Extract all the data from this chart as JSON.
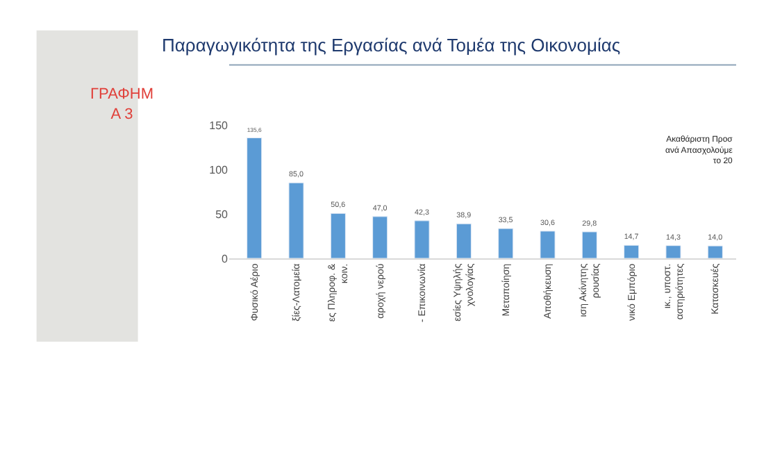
{
  "chart_data": {
    "type": "bar",
    "title": "Παραγωγικότητα της Εργασίας ανά Τομέα της Οικονομίας",
    "categories": [
      "Φυσικό Αέριο",
      "ξίες-Λατομεία",
      "ες Πληροφ. &\nκοιν.",
      "αροχή νερού",
      "- Επικοινωνία",
      "εσίες Υψηλής\nχνολογίας",
      "Μεταποίηση",
      "Αποθήκευση",
      "ιση Ακίνητης\nρουσίας",
      "νικό Εμπόριο",
      "ικ., υποστ.\nαστηριότητες",
      "Κατασκευές"
    ],
    "values": [
      135.6,
      85.0,
      50.6,
      47.0,
      42.3,
      38.9,
      33.5,
      30.6,
      29.8,
      14.7,
      14.3,
      14.0
    ],
    "value_labels": [
      "135,6",
      "85,0",
      "50,6",
      "47,0",
      "42,3",
      "38,9",
      "33,5",
      "30,6",
      "29,8",
      "14,7",
      "14,3",
      "14,0"
    ],
    "color": "#5b9bd5",
    "ylim": [
      0,
      150
    ],
    "yticks": [
      0,
      50,
      100,
      150
    ],
    "legend": false,
    "annotations": [
      "ΓΡΑΦΗΜ\nΑ 3",
      "Ακαθάριστη Προσ\nανά Απασχολούμε\nτο 20"
    ]
  }
}
